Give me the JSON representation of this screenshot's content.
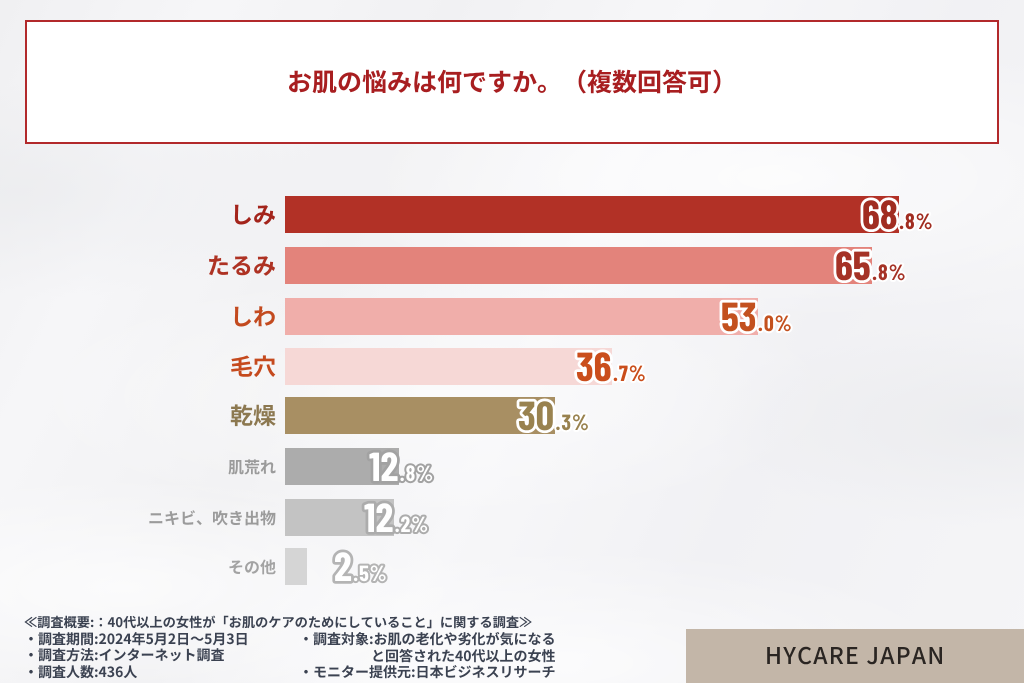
{
  "chart": {
    "title": "お肌の悩みは何ですか。（複数回答可）",
    "title_color": "#A81E20",
    "box_border_color": "#B2292B"
  },
  "chart_data": {
    "type": "bar",
    "orientation": "horizontal",
    "title": "お肌の悩みは何ですか。（複数回答可）",
    "categories": [
      "しみ",
      "たるみ",
      "しわ",
      "毛穴",
      "乾燥",
      "肌荒れ",
      "ニキビ、吹き出物",
      "その他"
    ],
    "values": [
      68.8,
      65.8,
      53.0,
      36.7,
      30.3,
      12.8,
      12.2,
      2.5
    ],
    "value_labels": [
      "68.8%",
      "65.8%",
      "53.0%",
      "36.7%",
      "30.3%",
      "12.8%",
      "12.2%",
      "2.5%"
    ],
    "unit": "%",
    "xlim": [
      0,
      77
    ],
    "bar_colors": [
      "#B23126",
      "#E3837B",
      "#F0AEAA",
      "#F6D8D6",
      "#A88F63",
      "#ACACAC",
      "#C3C3C3",
      "#D5D5D5"
    ],
    "label_colors": [
      "#A3241B",
      "#AE3223",
      "#C34A1F",
      "#C54A1E",
      "#8C7850",
      "#9B9B9B",
      "#9B9B9B",
      "#A3A3A3"
    ],
    "value_text_colors": [
      "#A12D21",
      "#A53226",
      "#C3511F",
      "#CA4E1C",
      "#99824F",
      "#FFFFFF",
      "#FFFFFF",
      "#FFFFFF"
    ],
    "value_outline_colors": [
      "#FFFFFF",
      "#FFFFFF",
      "#FFFFFF",
      "#FFFFFF",
      "#FFFFFF",
      "#A2A2A2",
      "#ACACAC",
      "#B4B4B4"
    ],
    "legend": null,
    "grid": false
  },
  "footer": {
    "heading": "≪調査概要:：40代以上の女性が「お肌のケアのためにしていること」に関する調査≫",
    "left_items": [
      "・調査期間:2024年5月2日〜5月3日",
      "・調査方法:インターネット調査",
      "・調査人数:436人"
    ],
    "right_items": [
      "・調査対象:お肌の老化や劣化が気になる",
      "と回答された40代以上の女性",
      "・モニター提供元:日本ビジネスリサーチ"
    ],
    "text_color": "#3B4251",
    "brand": "HYCARE JAPAN",
    "brand_bg": "#C3B6A8",
    "brand_text_color": "#2A2522"
  }
}
